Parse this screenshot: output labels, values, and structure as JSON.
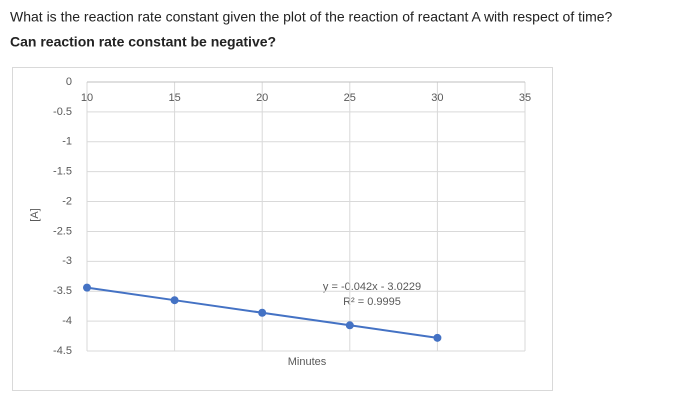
{
  "question": [
    "What is the reaction rate constant given the plot of the reaction of reactant A with respect of time?",
    "Can reaction rate constant be negative?"
  ],
  "chart_data": {
    "type": "line",
    "x_label": "Minutes",
    "y_label": "[A]",
    "annotations": [
      "y = -0.042x - 3.0229",
      "R² = 0.9995"
    ],
    "x": [
      10,
      15,
      20,
      25,
      30
    ],
    "series": [
      {
        "name": "[A]",
        "color": "#4472c4",
        "values": [
          -3.44,
          -3.65,
          -3.86,
          -4.07,
          -4.28
        ]
      }
    ],
    "xlim": [
      10,
      35
    ],
    "xticks": [
      10,
      15,
      20,
      25,
      30,
      35
    ],
    "ylim": [
      -4.5,
      0
    ],
    "yticks": [
      0,
      -0.5,
      -1,
      -1.5,
      -2,
      -2.5,
      -3,
      -3.5,
      -4,
      -4.5
    ],
    "grid": true
  }
}
